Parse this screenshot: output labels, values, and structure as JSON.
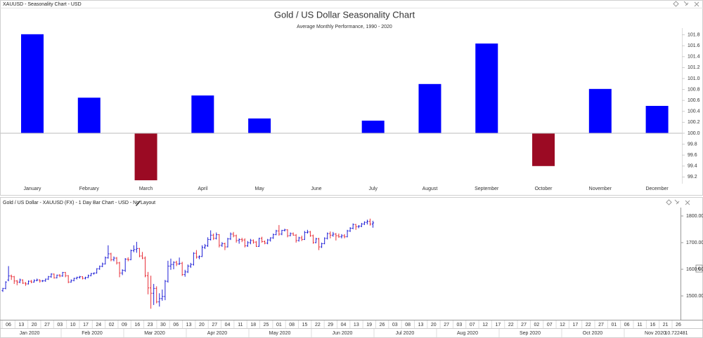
{
  "chart_data": [
    {
      "type": "bar",
      "panel_title": "XAUUSD - Seasonality Chart - USD",
      "title": "Gold / US Dollar Seasonality Chart",
      "subtitle": "Average Monthly Performance, 1990 - 2020",
      "categories": [
        "January",
        "February",
        "March",
        "April",
        "May",
        "June",
        "July",
        "August",
        "September",
        "October",
        "November",
        "December"
      ],
      "values": [
        101.81,
        100.65,
        99.14,
        100.69,
        100.27,
        100.0,
        100.23,
        100.9,
        101.64,
        99.4,
        100.81,
        100.5
      ],
      "baseline": 100,
      "up_color": "#0000ff",
      "down_color": "#9b0a23",
      "ylim": [
        99.1,
        101.9
      ],
      "yticks": [
        99.2,
        99.4,
        99.6,
        99.8,
        {
          "value": 100,
          "label": "100.0"
        },
        100.2,
        100.4,
        100.6,
        100.8,
        {
          "value": 101,
          "label": "101.0"
        },
        101.2,
        101.4,
        101.6,
        101.8
      ]
    },
    {
      "type": "ohlc",
      "panel_title": "Gold / US Dollar - XAUUSD (FX) - 1 Day Bar Chart - USD - No Layout",
      "up_color": "#1f1fd6",
      "down_color": "#e8303a",
      "ylim": [
        1415,
        1830
      ],
      "yticks": [
        {
          "value": 1500,
          "label": "1500.00"
        },
        {
          "value": 1600,
          "label": "1600.00"
        },
        {
          "value": 1700,
          "label": "1700.00"
        },
        {
          "value": 1800,
          "label": "1800.00"
        }
      ],
      "currency_marker": "€",
      "status_value": "10.722481",
      "xtick_labels": [
        "06",
        "13",
        "20",
        "27",
        "03",
        "10",
        "17",
        "24",
        "02",
        "09",
        "16",
        "23",
        "30",
        "06",
        "13",
        "20",
        "27",
        "04",
        "11",
        "18",
        "25",
        "01",
        "08",
        "15",
        "22",
        "29",
        "04",
        "13",
        "19",
        "26",
        "03",
        "08",
        "13",
        "20",
        "27",
        "03",
        "07",
        "12",
        "17",
        "22",
        "27",
        "02",
        "07",
        "12",
        "17",
        "22",
        "27",
        "01",
        "06",
        "11",
        "16",
        "21",
        "26"
      ],
      "month_labels": [
        "Jan 2020",
        "Feb 2020",
        "Mar 2020",
        "Apr 2020",
        "May 2020",
        "Jun 2020",
        "Jul 2020",
        "Aug 2020",
        "Sep 2020",
        "Oct 2020",
        "Nov 2020"
      ],
      "ohlc": [
        [
          1520,
          1530,
          1515,
          1528
        ],
        [
          1528,
          1555,
          1525,
          1552
        ],
        [
          1560,
          1612,
          1555,
          1575
        ],
        [
          1575,
          1580,
          1560,
          1572
        ],
        [
          1572,
          1575,
          1545,
          1556
        ],
        [
          1556,
          1560,
          1540,
          1552
        ],
        [
          1552,
          1565,
          1548,
          1560
        ],
        [
          1560,
          1562,
          1545,
          1548
        ],
        [
          1548,
          1552,
          1538,
          1545
        ],
        [
          1545,
          1558,
          1543,
          1555
        ],
        [
          1555,
          1560,
          1548,
          1552
        ],
        [
          1552,
          1562,
          1550,
          1558
        ],
        [
          1558,
          1565,
          1555,
          1560
        ],
        [
          1560,
          1562,
          1550,
          1556
        ],
        [
          1556,
          1560,
          1552,
          1557
        ],
        [
          1557,
          1565,
          1553,
          1563
        ],
        [
          1563,
          1575,
          1560,
          1572
        ],
        [
          1572,
          1585,
          1568,
          1582
        ],
        [
          1582,
          1584,
          1565,
          1568
        ],
        [
          1568,
          1580,
          1566,
          1578
        ],
        [
          1578,
          1582,
          1570,
          1575
        ],
        [
          1575,
          1590,
          1572,
          1588
        ],
        [
          1588,
          1590,
          1570,
          1576
        ],
        [
          1576,
          1578,
          1548,
          1552
        ],
        [
          1552,
          1562,
          1550,
          1558
        ],
        [
          1558,
          1568,
          1555,
          1566
        ],
        [
          1566,
          1572,
          1562,
          1570
        ],
        [
          1570,
          1575,
          1565,
          1572
        ],
        [
          1572,
          1574,
          1562,
          1566
        ],
        [
          1566,
          1572,
          1562,
          1569
        ],
        [
          1569,
          1580,
          1567,
          1576
        ],
        [
          1576,
          1586,
          1574,
          1584
        ],
        [
          1584,
          1588,
          1580,
          1586
        ],
        [
          1586,
          1604,
          1584,
          1602
        ],
        [
          1602,
          1614,
          1598,
          1611
        ],
        [
          1611,
          1625,
          1608,
          1620
        ],
        [
          1620,
          1648,
          1618,
          1643
        ],
        [
          1643,
          1690,
          1640,
          1658
        ],
        [
          1658,
          1662,
          1630,
          1636
        ],
        [
          1636,
          1648,
          1630,
          1642
        ],
        [
          1642,
          1646,
          1618,
          1624
        ],
        [
          1624,
          1628,
          1570,
          1586
        ],
        [
          1586,
          1600,
          1578,
          1596
        ],
        [
          1596,
          1642,
          1590,
          1638
        ],
        [
          1638,
          1645,
          1630,
          1636
        ],
        [
          1636,
          1674,
          1634,
          1670
        ],
        [
          1670,
          1690,
          1664,
          1674
        ],
        [
          1674,
          1703,
          1662,
          1678
        ],
        [
          1678,
          1680,
          1645,
          1650
        ],
        [
          1650,
          1665,
          1638,
          1642
        ],
        [
          1642,
          1648,
          1570,
          1576
        ],
        [
          1576,
          1590,
          1506,
          1530
        ],
        [
          1530,
          1576,
          1452,
          1510
        ],
        [
          1510,
          1545,
          1466,
          1528
        ],
        [
          1528,
          1536,
          1472,
          1478
        ],
        [
          1478,
          1510,
          1460,
          1490
        ],
        [
          1490,
          1524,
          1482,
          1498
        ],
        [
          1498,
          1560,
          1484,
          1555
        ],
        [
          1555,
          1632,
          1550,
          1612
        ],
        [
          1612,
          1640,
          1598,
          1618
        ],
        [
          1618,
          1630,
          1600,
          1626
        ],
        [
          1626,
          1632,
          1612,
          1620
        ],
        [
          1620,
          1644,
          1616,
          1622
        ],
        [
          1622,
          1628,
          1575,
          1580
        ],
        [
          1580,
          1598,
          1572,
          1590
        ],
        [
          1590,
          1618,
          1586,
          1612
        ],
        [
          1612,
          1624,
          1605,
          1618
        ],
        [
          1618,
          1664,
          1614,
          1660
        ],
        [
          1660,
          1672,
          1640,
          1646
        ],
        [
          1646,
          1652,
          1638,
          1648
        ],
        [
          1648,
          1690,
          1646,
          1682
        ],
        [
          1682,
          1695,
          1676,
          1688
        ],
        [
          1688,
          1720,
          1684,
          1712
        ],
        [
          1712,
          1746,
          1708,
          1728
        ],
        [
          1728,
          1734,
          1710,
          1716
        ],
        [
          1716,
          1738,
          1712,
          1730
        ],
        [
          1730,
          1732,
          1682,
          1690
        ],
        [
          1690,
          1702,
          1684,
          1696
        ],
        [
          1696,
          1700,
          1672,
          1684
        ],
        [
          1684,
          1718,
          1682,
          1714
        ],
        [
          1714,
          1738,
          1710,
          1732
        ],
        [
          1732,
          1740,
          1720,
          1726
        ],
        [
          1726,
          1730,
          1700,
          1708
        ],
        [
          1708,
          1716,
          1696,
          1712
        ],
        [
          1712,
          1718,
          1702,
          1710
        ],
        [
          1710,
          1716,
          1682,
          1688
        ],
        [
          1688,
          1706,
          1684,
          1700
        ],
        [
          1700,
          1714,
          1694,
          1708
        ],
        [
          1708,
          1712,
          1696,
          1702
        ],
        [
          1702,
          1706,
          1684,
          1686
        ],
        [
          1686,
          1718,
          1684,
          1716
        ],
        [
          1716,
          1722,
          1700,
          1704
        ],
        [
          1704,
          1708,
          1694,
          1698
        ],
        [
          1698,
          1714,
          1694,
          1710
        ],
        [
          1710,
          1720,
          1704,
          1718
        ],
        [
          1718,
          1734,
          1714,
          1730
        ],
        [
          1730,
          1748,
          1728,
          1744
        ],
        [
          1744,
          1766,
          1726,
          1732
        ],
        [
          1732,
          1748,
          1728,
          1746
        ],
        [
          1746,
          1752,
          1742,
          1748
        ],
        [
          1748,
          1750,
          1720,
          1726
        ],
        [
          1726,
          1738,
          1724,
          1734
        ],
        [
          1734,
          1738,
          1726,
          1728
        ],
        [
          1728,
          1732,
          1700,
          1708
        ],
        [
          1708,
          1722,
          1704,
          1718
        ],
        [
          1718,
          1726,
          1706,
          1712
        ],
        [
          1712,
          1744,
          1710,
          1738
        ],
        [
          1738,
          1748,
          1734,
          1740
        ],
        [
          1740,
          1744,
          1722,
          1726
        ],
        [
          1726,
          1730,
          1696,
          1700
        ],
        [
          1700,
          1718,
          1698,
          1714
        ],
        [
          1714,
          1718,
          1672,
          1684
        ],
        [
          1684,
          1700,
          1680,
          1696
        ],
        [
          1696,
          1720,
          1694,
          1716
        ],
        [
          1716,
          1738,
          1712,
          1734
        ],
        [
          1734,
          1742,
          1716,
          1728
        ],
        [
          1728,
          1740,
          1722,
          1732
        ],
        [
          1732,
          1736,
          1708,
          1726
        ],
        [
          1726,
          1734,
          1718,
          1722
        ],
        [
          1722,
          1732,
          1716,
          1726
        ],
        [
          1726,
          1732,
          1716,
          1722
        ],
        [
          1722,
          1748,
          1720,
          1744
        ],
        [
          1744,
          1758,
          1740,
          1754
        ],
        [
          1754,
          1772,
          1750,
          1768
        ],
        [
          1768,
          1770,
          1748,
          1760
        ],
        [
          1760,
          1766,
          1754,
          1762
        ],
        [
          1762,
          1774,
          1758,
          1770
        ],
        [
          1770,
          1780,
          1766,
          1776
        ],
        [
          1776,
          1786,
          1768,
          1780
        ],
        [
          1780,
          1790,
          1764,
          1770
        ],
        [
          1770,
          1782,
          1756,
          1774
        ]
      ]
    }
  ]
}
